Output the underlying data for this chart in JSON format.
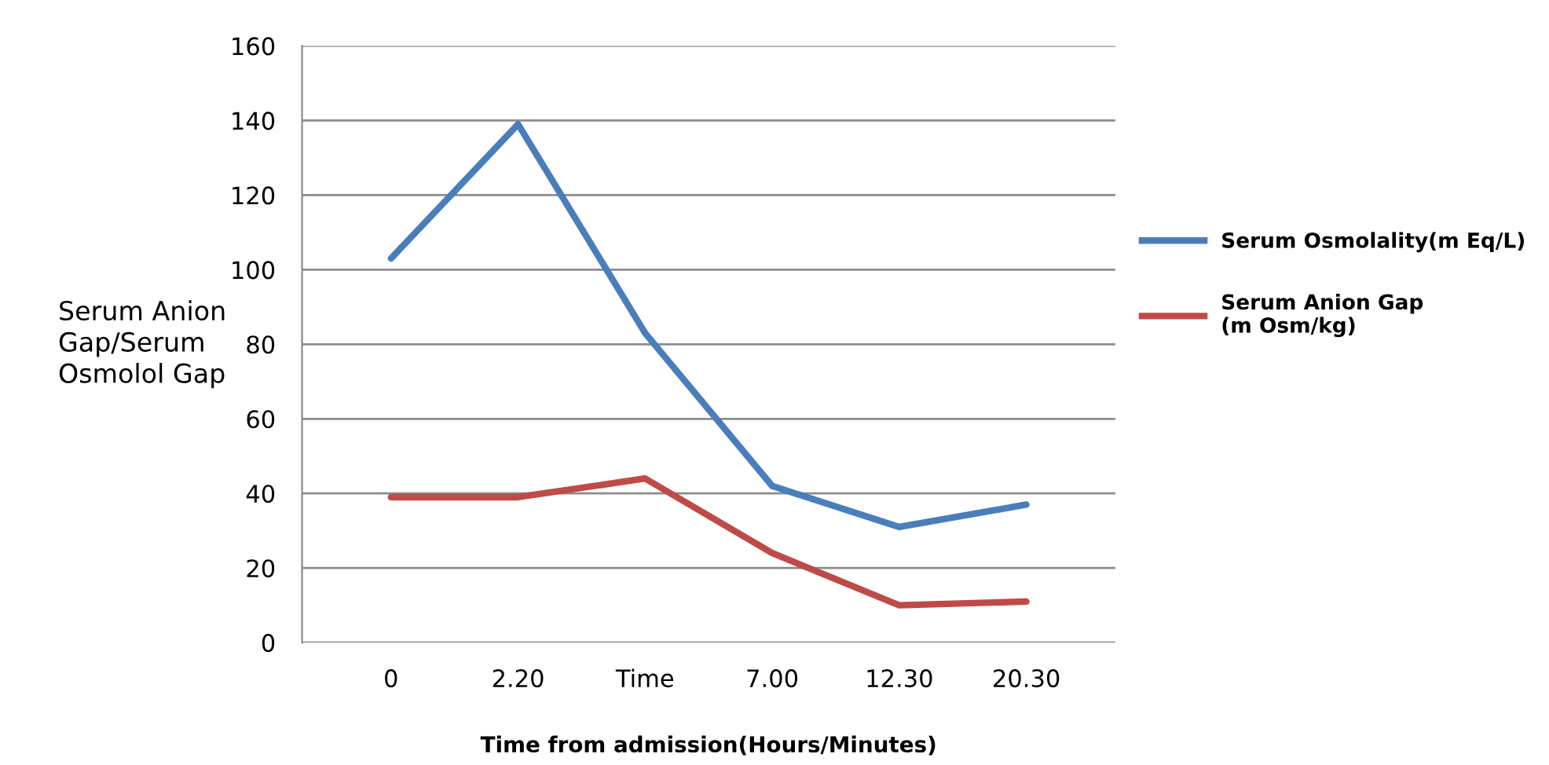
{
  "chart_data": {
    "type": "line",
    "xlabel": "Time from admission(Hours/Minutes)",
    "ylabel": "Serum Anion\nGap/Serum\nOsmolol Gap",
    "categories": [
      "0",
      "2.20",
      "Time",
      "7.00",
      "12.30",
      "20.30"
    ],
    "series": [
      {
        "name": "Serum Osmolality(m Eq/L)",
        "color": "#4a7ebb",
        "values": [
          103,
          139,
          83,
          42,
          31,
          37
        ]
      },
      {
        "name": "Serum Anion Gap\n(m Osm/kg)",
        "color": "#be4b48",
        "values": [
          39,
          39,
          44,
          24,
          10,
          11
        ]
      }
    ],
    "ylim": [
      0,
      160
    ],
    "yticks": [
      0,
      20,
      40,
      60,
      80,
      100,
      120,
      140,
      160
    ],
    "grid": "y",
    "legend": "right",
    "marker": "none",
    "line_style": "solid"
  }
}
